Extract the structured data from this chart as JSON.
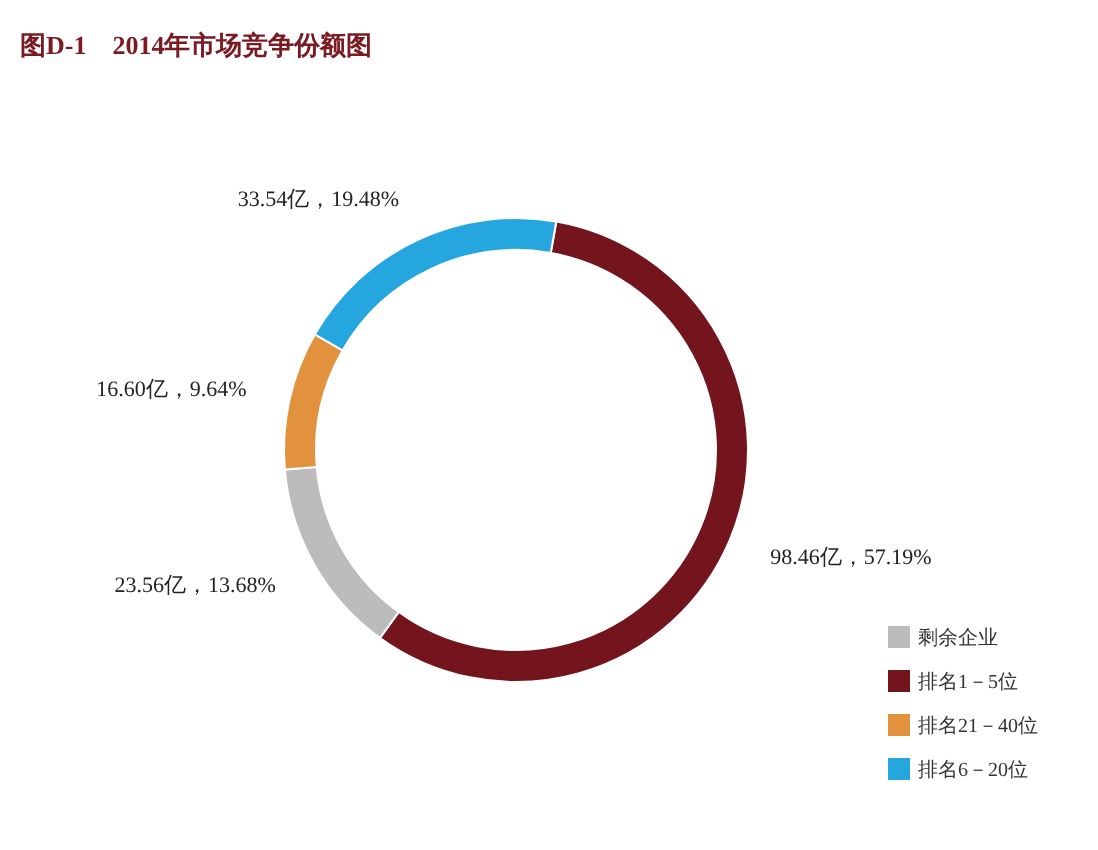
{
  "chart_data": {
    "type": "donut",
    "title": "图D-1　2014年市场竞争份额图",
    "categories": [
      "排名1－5位",
      "剩余企业",
      "排名21－40位",
      "排名6－20位"
    ],
    "values": [
      98.46,
      23.56,
      16.6,
      33.54
    ],
    "colors": [
      "#74141c",
      "#bcbcbc",
      "#e2913c",
      "#25a6df"
    ],
    "value_labels": [
      "98.46亿，57.19%",
      "23.56亿，13.68%",
      "16.60亿，9.64%",
      "33.54亿，19.48%"
    ],
    "legend": "bottom right"
  }
}
